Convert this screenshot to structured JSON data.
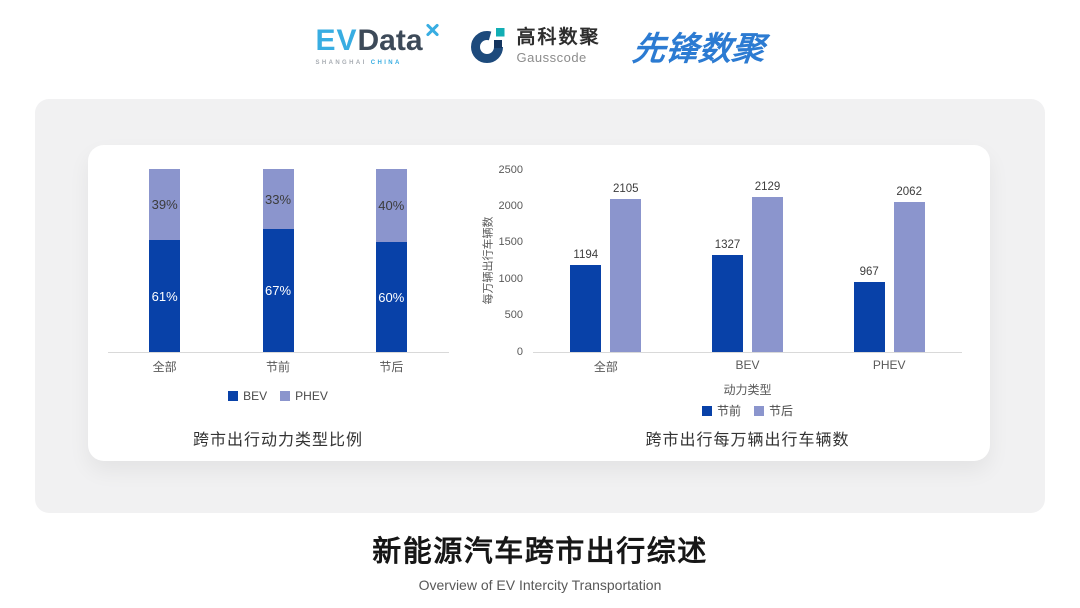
{
  "header": {
    "evdata_logo": {
      "ev": "EV",
      "data": "Data",
      "sub_shanghai": "SHANGHAI",
      "sub_china": "CHINA"
    },
    "gausscode_logo": {
      "cn": "高科数聚",
      "en": "Gausscode"
    },
    "pioneer_logo": {
      "text": "先锋数聚"
    }
  },
  "footer": {
    "title": "新能源汽车跨市出行综述",
    "subtitle": "Overview of EV Intercity Transportation"
  },
  "colors": {
    "series_dark": "#0841A8",
    "series_light": "#8B95CD",
    "axis_line": "#D9D9D9",
    "card_bg": "#F1F1F2",
    "tick_text": "#595959",
    "value_text": "#3D3D3D"
  },
  "chart_data": [
    {
      "type": "bar",
      "subtype": "stacked_percent",
      "title": "跨市出行动力类型比例",
      "categories": [
        "全部",
        "节前",
        "节后"
      ],
      "series": [
        {
          "name": "BEV",
          "values": [
            61,
            67,
            60
          ]
        },
        {
          "name": "PHEV",
          "values": [
            39,
            33,
            40
          ]
        }
      ],
      "value_suffix": "%",
      "ylim": [
        0,
        100
      ],
      "bar_colors": [
        "#0841A8",
        "#8B95CD"
      ],
      "legend_position": "bottom",
      "grid": false
    },
    {
      "type": "bar",
      "subtype": "grouped",
      "title": "跨市出行每万辆出行车辆数",
      "categories": [
        "全部",
        "BEV",
        "PHEV"
      ],
      "series": [
        {
          "name": "节前",
          "values": [
            1194,
            1327,
            967
          ]
        },
        {
          "name": "节后",
          "values": [
            2105,
            2129,
            2062
          ]
        }
      ],
      "xlabel": "动力类型",
      "ylabel": "每万辆出行车辆数",
      "ylim": [
        0,
        2500
      ],
      "yticks": [
        0,
        500,
        1000,
        1500,
        2000,
        2500
      ],
      "bar_colors": [
        "#0841A8",
        "#8B95CD"
      ],
      "legend_position": "bottom",
      "grid": false
    }
  ]
}
